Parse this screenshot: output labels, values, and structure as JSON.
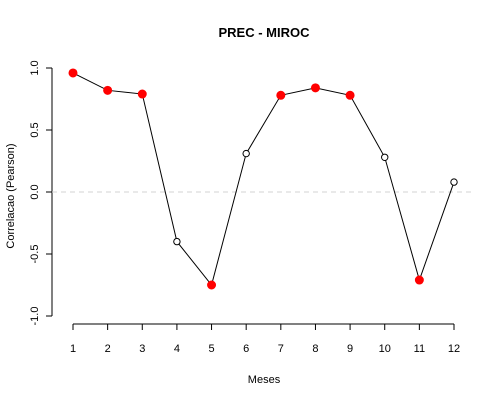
{
  "chart_data": {
    "type": "line",
    "title": "PREC - MIROC",
    "xlabel": "Meses",
    "ylabel": "Correlacao (Pearson)",
    "x": [
      1,
      2,
      3,
      4,
      5,
      6,
      7,
      8,
      9,
      10,
      11,
      12
    ],
    "x_tick_labels": [
      "1",
      "2",
      "3",
      "4",
      "5",
      "6",
      "7",
      "8",
      "9",
      "10",
      "11",
      "12"
    ],
    "values": [
      0.96,
      0.82,
      0.79,
      -0.4,
      -0.75,
      0.31,
      0.78,
      0.84,
      0.78,
      0.28,
      -0.71,
      0.08
    ],
    "significant": [
      true,
      true,
      true,
      false,
      true,
      false,
      true,
      true,
      true,
      false,
      true,
      false
    ],
    "ylim": [
      -1.0,
      1.0
    ],
    "y_ticks": [
      -1.0,
      -0.5,
      0.0,
      0.5,
      1.0
    ],
    "y_tick_labels": [
      "-1.0",
      "-0.5",
      "0.0",
      "0.5",
      "1.0"
    ],
    "reference_line": 0.0,
    "marker_colors": {
      "filled": "#ff0000",
      "open": "#ffffff"
    },
    "line_color": "#000000",
    "reference_line_color": "#d3d3d3"
  }
}
